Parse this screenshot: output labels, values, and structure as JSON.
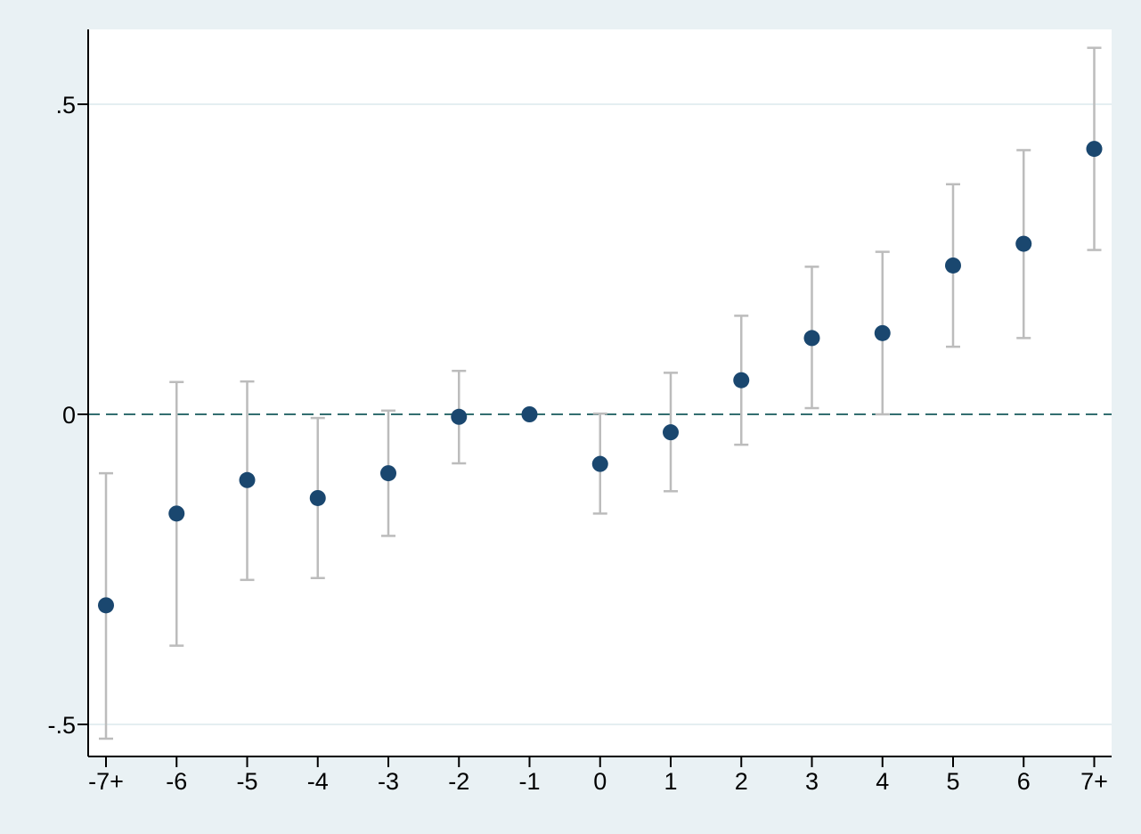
{
  "chart_data": {
    "type": "scatter",
    "title": "",
    "xlabel": "",
    "ylabel": "",
    "categories": [
      "-7+",
      "-6",
      "-5",
      "-4",
      "-3",
      "-2",
      "-1",
      "0",
      "1",
      "2",
      "3",
      "4",
      "5",
      "6",
      "7+"
    ],
    "estimates": [
      -0.308,
      -0.16,
      -0.106,
      -0.135,
      -0.095,
      -0.004,
      0.0,
      -0.08,
      -0.029,
      0.055,
      0.123,
      0.131,
      0.24,
      0.275,
      0.428
    ],
    "ci_lower": [
      -0.523,
      -0.373,
      -0.267,
      -0.264,
      -0.196,
      -0.079,
      0.0,
      -0.16,
      -0.124,
      -0.049,
      0.01,
      0.0,
      0.109,
      0.123,
      0.265
    ],
    "ci_upper": [
      -0.095,
      0.052,
      0.053,
      -0.006,
      0.006,
      0.07,
      0.0,
      0.001,
      0.067,
      0.159,
      0.238,
      0.262,
      0.371,
      0.426,
      0.591
    ],
    "y_ticks": [
      -0.5,
      0,
      0.5
    ],
    "y_tick_labels": [
      "-.5",
      "0",
      ".5"
    ],
    "ylim": [
      -0.55,
      0.62
    ],
    "reference_line": 0,
    "grid": true,
    "legend": "none",
    "colors": {
      "background": "#e9f1f4",
      "plot_area": "#ffffff",
      "grid": "#e4eef1",
      "marker": "#1a476f",
      "ci": "#bcbcbc",
      "reference_line": "#336e70",
      "axis": "#000000"
    }
  }
}
